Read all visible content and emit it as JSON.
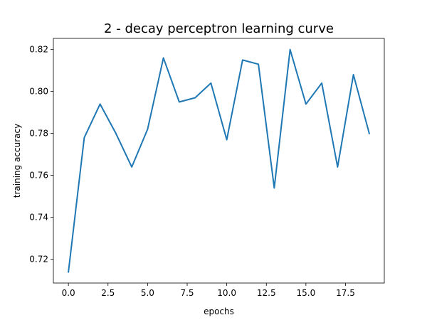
{
  "chart_data": {
    "type": "line",
    "title": "2 - decay perceptron learning curve",
    "xlabel": "epochs",
    "ylabel": "training accuracy",
    "xlim": [
      -0.95,
      19.95
    ],
    "ylim": [
      0.7087,
      0.8253
    ],
    "x_ticks": [
      0.0,
      2.5,
      5.0,
      7.5,
      10.0,
      12.5,
      15.0,
      17.5
    ],
    "x_tick_labels": [
      "0.0",
      "2.5",
      "5.0",
      "7.5",
      "10.0",
      "12.5",
      "15.0",
      "17.5"
    ],
    "y_ticks": [
      0.72,
      0.74,
      0.76,
      0.78,
      0.8,
      0.82
    ],
    "y_tick_labels": [
      "0.72",
      "0.74",
      "0.76",
      "0.78",
      "0.80",
      "0.82"
    ],
    "grid": false,
    "series": [
      {
        "color": "#1f77b4",
        "x": [
          0,
          1,
          2,
          3,
          4,
          5,
          6,
          7,
          8,
          9,
          10,
          11,
          12,
          13,
          14,
          15,
          16,
          17,
          18,
          19
        ],
        "y": [
          0.714,
          0.778,
          0.794,
          0.78,
          0.764,
          0.782,
          0.816,
          0.795,
          0.797,
          0.804,
          0.777,
          0.815,
          0.813,
          0.754,
          0.82,
          0.794,
          0.804,
          0.764,
          0.808,
          0.78
        ]
      }
    ]
  }
}
